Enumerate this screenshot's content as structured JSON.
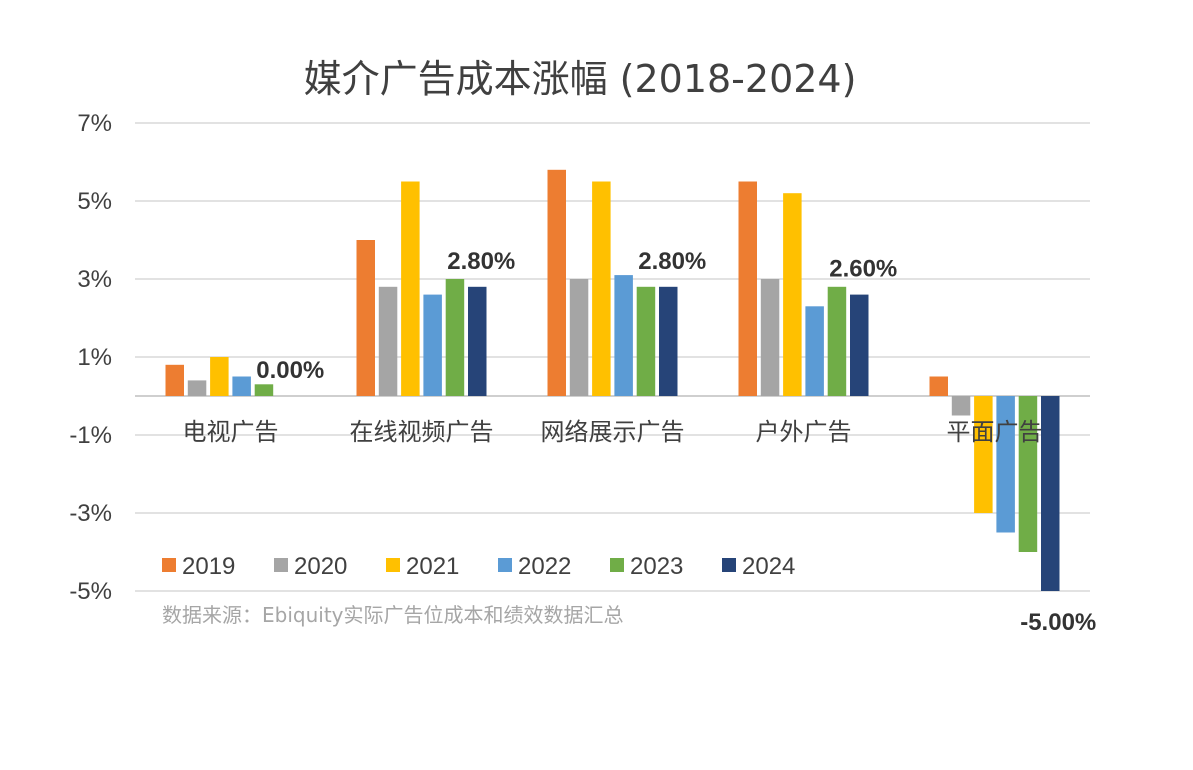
{
  "chart_data": {
    "type": "bar",
    "title": "媒介广告成本涨幅 (2018-2024)",
    "categories": [
      "电视广告",
      "在线视频广告",
      "网络展示广告",
      "户外广告",
      "平面广告"
    ],
    "series": [
      {
        "name": "2019",
        "color": "#ED7D31",
        "values": [
          0.8,
          4.0,
          5.8,
          5.5,
          0.5
        ]
      },
      {
        "name": "2020",
        "color": "#A5A5A5",
        "values": [
          0.4,
          2.8,
          3.0,
          3.0,
          -0.5
        ]
      },
      {
        "name": "2021",
        "color": "#FFC000",
        "values": [
          1.0,
          5.5,
          5.5,
          5.2,
          -3.0
        ]
      },
      {
        "name": "2022",
        "color": "#5B9BD5",
        "values": [
          0.5,
          2.6,
          3.1,
          2.3,
          -3.5
        ]
      },
      {
        "name": "2023",
        "color": "#70AD47",
        "values": [
          0.3,
          3.0,
          2.8,
          2.8,
          -4.0
        ]
      },
      {
        "name": "2024",
        "color": "#264478",
        "values": [
          0.0,
          2.8,
          2.8,
          2.6,
          -5.0
        ]
      }
    ],
    "data_labels": [
      "0.00%",
      "2.80%",
      "2.80%",
      "2.60%",
      "-5.00%"
    ],
    "ylim": [
      -5,
      7
    ],
    "yticks": [
      7,
      5,
      3,
      1,
      -1,
      -3,
      -5
    ],
    "ytick_labels": [
      "7%",
      "5%",
      "3%",
      "1%",
      "-1%",
      "-3%",
      "-5%"
    ],
    "grid": true,
    "legend_position": "bottom-left-inside",
    "source": "数据来源：Ebiquity实际广告位成本和绩效数据汇总"
  }
}
